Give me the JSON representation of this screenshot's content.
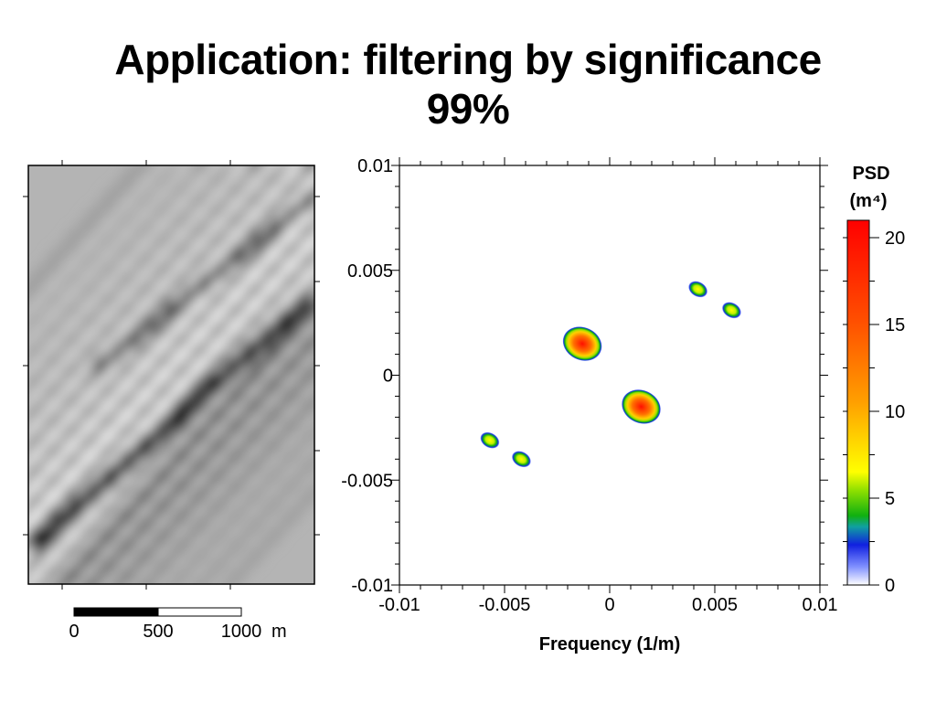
{
  "slide": {
    "title_line1": "Application: filtering by significance",
    "title_line2": "99%"
  },
  "image_panel": {
    "scale_bar": {
      "tick_labels": [
        "0",
        "500",
        "1000"
      ],
      "unit": "m"
    }
  },
  "chart_data": {
    "type": "heatmap",
    "title": "",
    "xlabel": "Frequency (1/m)",
    "ylabel": "",
    "xlim": [
      -0.01,
      0.01
    ],
    "ylim": [
      -0.01,
      0.01
    ],
    "x_tick_labels": [
      "-0.01",
      "-0.005",
      "0",
      "0.005",
      "0.01"
    ],
    "x_ticks": [
      -0.01,
      -0.005,
      0,
      0.005,
      0.01
    ],
    "y_tick_labels": [
      "0.01",
      "0.005",
      "0",
      "-0.005",
      "-0.01"
    ],
    "y_ticks": [
      0.01,
      0.005,
      0,
      -0.005,
      -0.01
    ],
    "grid": false,
    "peaks": [
      {
        "x": -0.0013,
        "y": 0.0015,
        "value": 17
      },
      {
        "x": 0.0015,
        "y": -0.0015,
        "value": 17
      },
      {
        "x": 0.0042,
        "y": 0.0041,
        "value": 5
      },
      {
        "x": 0.0058,
        "y": 0.0031,
        "value": 5
      },
      {
        "x": -0.0057,
        "y": -0.0031,
        "value": 5
      },
      {
        "x": -0.0042,
        "y": -0.004,
        "value": 5
      }
    ],
    "colorbar": {
      "title_line1": "PSD",
      "title_line2": "(m⁴)",
      "range": [
        0,
        21
      ],
      "ticks": [
        0,
        5,
        10,
        15,
        20
      ],
      "tick_labels": [
        "0",
        "5",
        "10",
        "15",
        "20"
      ],
      "colors": [
        "#ffffff",
        "#2030d0",
        "#20b020",
        "#ffff00",
        "#ff8000",
        "#ff0000"
      ]
    }
  }
}
